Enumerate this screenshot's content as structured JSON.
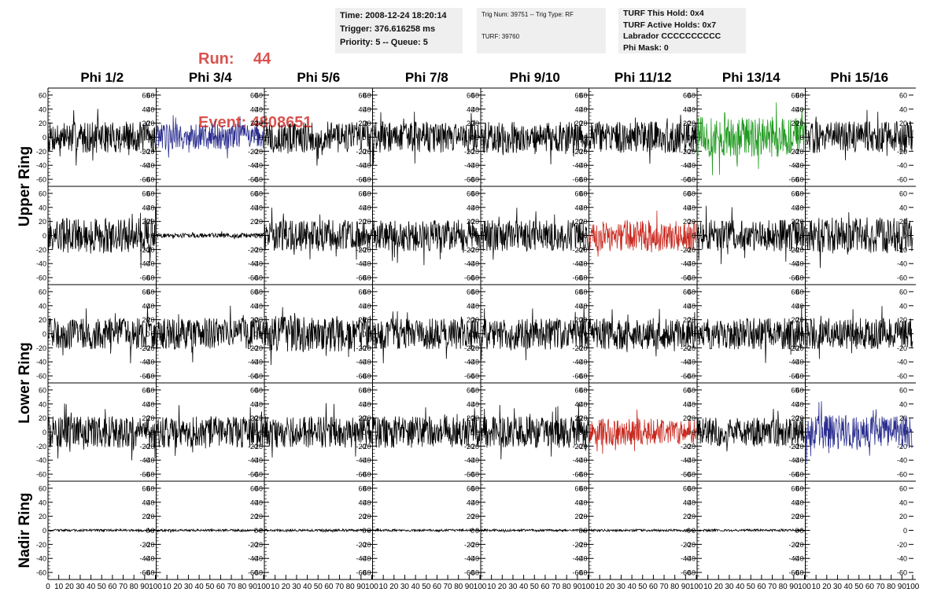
{
  "run": {
    "run_label": "Run:",
    "run_value": "44",
    "event_label": "Event:",
    "event_value": "4808651"
  },
  "info_time": {
    "time": "Time: 2008-12-24 18:20:14",
    "trigger": "Trigger: 376.616258 ms",
    "priority": "Priority: 5 -- Queue: 5"
  },
  "info_trig": {
    "trig": "Trig Num: 39751 -- Trig Type: RF",
    "turf": "TURF: 39760"
  },
  "info_turf": {
    "hold": "TURF This Hold: 0x4",
    "active": "TURF Active Holds: 0x7",
    "labrador": "Labrador CCCCCCCCCC",
    "phimask": "Phi Mask: 0"
  },
  "colors": {
    "default": "#000000",
    "blue": "#2b2e8f",
    "green": "#1f9a1f",
    "red": "#c8281e",
    "title": "#d9534f"
  },
  "chart_data": {
    "type": "line",
    "columns": [
      "Phi 1/2",
      "Phi 3/4",
      "Phi 5/6",
      "Phi 7/8",
      "Phi 9/10",
      "Phi 11/12",
      "Phi 13/14",
      "Phi 15/16"
    ],
    "row_groups": [
      {
        "label": "Upper Ring",
        "rows": 2
      },
      {
        "label": "Lower Ring",
        "rows": 2
      },
      {
        "label": "Nadir Ring",
        "rows": 1
      }
    ],
    "xlim": [
      0,
      100
    ],
    "ylim": [
      -70,
      70
    ],
    "x_ticks": [
      "0",
      "10",
      "20",
      "30",
      "40",
      "50",
      "60",
      "70",
      "80",
      "90",
      "100"
    ],
    "y_ticks": [
      "-60",
      "-40",
      "-20",
      "0",
      "20",
      "40",
      "60"
    ],
    "panels": [
      [
        {
          "color": "default",
          "amp": 14
        },
        {
          "color": "blue",
          "amp": 12
        },
        {
          "color": "default",
          "amp": 14
        },
        {
          "color": "default",
          "amp": 14
        },
        {
          "color": "default",
          "amp": 14
        },
        {
          "color": "default",
          "amp": 14
        },
        {
          "color": "green",
          "amp": 18
        },
        {
          "color": "default",
          "amp": 14
        }
      ],
      [
        {
          "color": "default",
          "amp": 16
        },
        {
          "color": "default",
          "amp": 2
        },
        {
          "color": "default",
          "amp": 14
        },
        {
          "color": "default",
          "amp": 14
        },
        {
          "color": "default",
          "amp": 14
        },
        {
          "color": "red",
          "amp": 14
        },
        {
          "color": "default",
          "amp": 14
        },
        {
          "color": "default",
          "amp": 16
        }
      ],
      [
        {
          "color": "default",
          "amp": 14
        },
        {
          "color": "default",
          "amp": 14
        },
        {
          "color": "default",
          "amp": 16
        },
        {
          "color": "default",
          "amp": 14
        },
        {
          "color": "default",
          "amp": 14
        },
        {
          "color": "default",
          "amp": 14
        },
        {
          "color": "default",
          "amp": 14
        },
        {
          "color": "default",
          "amp": 14
        }
      ],
      [
        {
          "color": "default",
          "amp": 14
        },
        {
          "color": "default",
          "amp": 14
        },
        {
          "color": "default",
          "amp": 14
        },
        {
          "color": "default",
          "amp": 14
        },
        {
          "color": "default",
          "amp": 14
        },
        {
          "color": "red",
          "amp": 12
        },
        {
          "color": "default",
          "amp": 13
        },
        {
          "color": "blue",
          "amp": 15
        }
      ],
      [
        {
          "color": "default",
          "amp": 1
        },
        {
          "color": "default",
          "amp": 1
        },
        {
          "color": "default",
          "amp": 1
        },
        {
          "color": "default",
          "amp": 1
        },
        {
          "color": "default",
          "amp": 1
        },
        {
          "color": "default",
          "amp": 1
        },
        {
          "color": "default",
          "amp": 1
        },
        {
          "color": "none",
          "amp": 0
        }
      ]
    ]
  }
}
